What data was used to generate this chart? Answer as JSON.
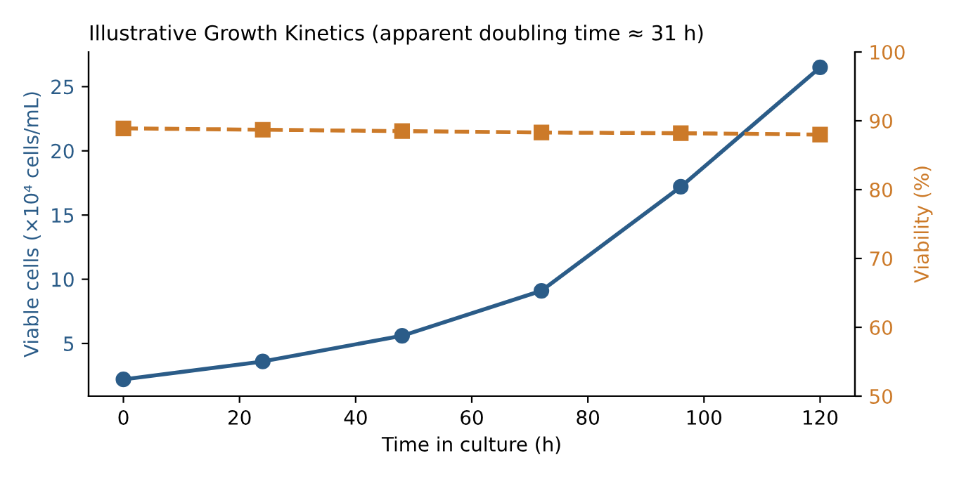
{
  "chart_data": {
    "type": "line",
    "title": "Illustrative Growth Kinetics (apparent doubling time ≈ 31 h)",
    "xlabel": "Time in culture (h)",
    "ylabel": "Viable cells (×10⁴ cells/mL)",
    "y2label": "Viability (%)",
    "x": [
      0,
      24,
      48,
      72,
      96,
      120
    ],
    "series": [
      {
        "color": "#2b5c88",
        "values": [
          2.2,
          3.6,
          5.6,
          9.1,
          17.2,
          26.5
        ],
        "marker": "circle",
        "line_style": "solid"
      },
      {
        "color": "#cc7a29",
        "values": [
          88.9,
          88.7,
          88.5,
          88.3,
          88.2,
          88.0
        ],
        "axis": "y2",
        "marker": "square",
        "line_style": "dashed"
      }
    ],
    "xlim": [
      -6,
      126
    ],
    "xticks": [
      0,
      20,
      40,
      60,
      80,
      100,
      120
    ],
    "ylim": [
      0.9,
      27.7
    ],
    "yticks": [
      5,
      10,
      15,
      20,
      25
    ],
    "y2lim": [
      50,
      100
    ],
    "y2ticks": [
      50,
      60,
      70,
      80,
      90,
      100
    ],
    "grid": false,
    "legend": false
  }
}
